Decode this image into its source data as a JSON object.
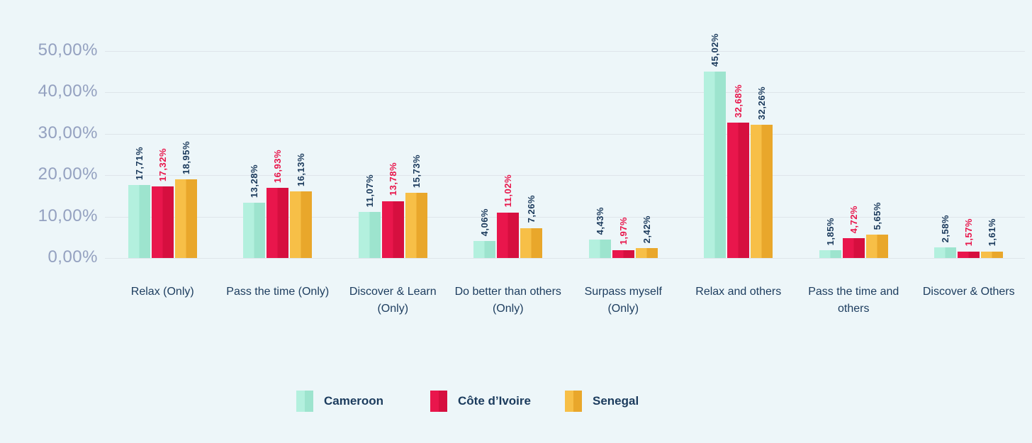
{
  "chart_data": {
    "type": "bar",
    "title": "",
    "xlabel": "",
    "ylabel": "",
    "categories": [
      "Relax (Only)",
      "Pass the time (Only)",
      "Discover & Learn (Only)",
      "Do better than others (Only)",
      "Surpass myself (Only)",
      "Relax and others",
      "Pass the time and others",
      "Discover & Others"
    ],
    "series": [
      {
        "name": "Cameroon",
        "values": [
          17.71,
          13.28,
          11.07,
          4.06,
          4.43,
          45.02,
          1.85,
          2.58
        ],
        "value_labels": [
          "17,71%",
          "13,28%",
          "11,07%",
          "4,06%",
          "4,43%",
          "45,02%",
          "1,85%",
          "2,58%"
        ],
        "color_light": "#b3f0de",
        "color_dark": "#9de4ce",
        "label_color": "#1b3a5c"
      },
      {
        "name": "Côte d’Ivoire",
        "values": [
          17.32,
          16.93,
          13.78,
          11.02,
          1.97,
          32.68,
          4.72,
          1.57
        ],
        "value_labels": [
          "17,32%",
          "16,93%",
          "13,78%",
          "11,02%",
          "1,97%",
          "32,68%",
          "4,72%",
          "1,57%"
        ],
        "color_light": "#e9164c",
        "color_dark": "#d60f3f",
        "label_color": "#e8164b"
      },
      {
        "name": "Senegal",
        "values": [
          18.95,
          16.13,
          15.73,
          7.26,
          2.42,
          32.26,
          5.65,
          1.61
        ],
        "value_labels": [
          "18,95%",
          "16,13%",
          "15,73%",
          "7,26%",
          "2,42%",
          "32,26%",
          "5,65%",
          "1,61%"
        ],
        "color_light": "#f7bf47",
        "color_dark": "#e9a72b",
        "label_color": "#1b3a5c"
      }
    ],
    "y_axis": {
      "tick_labels": [
        "50,00%",
        "40,00%",
        "30,00%",
        "20,00%",
        "10,00%",
        "0,00%"
      ],
      "tick_values": [
        50,
        40,
        30,
        20,
        10,
        0
      ],
      "ylim": [
        0,
        50
      ],
      "grid": true
    },
    "legend": {
      "position": "bottom",
      "entries": [
        "Cameroon",
        "Côte d’Ivoire",
        "Senegal"
      ]
    },
    "style": {
      "background": "#edf6f9",
      "gridline_color": "#dee5ea",
      "axis_label_color": "#94a1c0",
      "category_label_color": "#1c3c5e"
    }
  }
}
